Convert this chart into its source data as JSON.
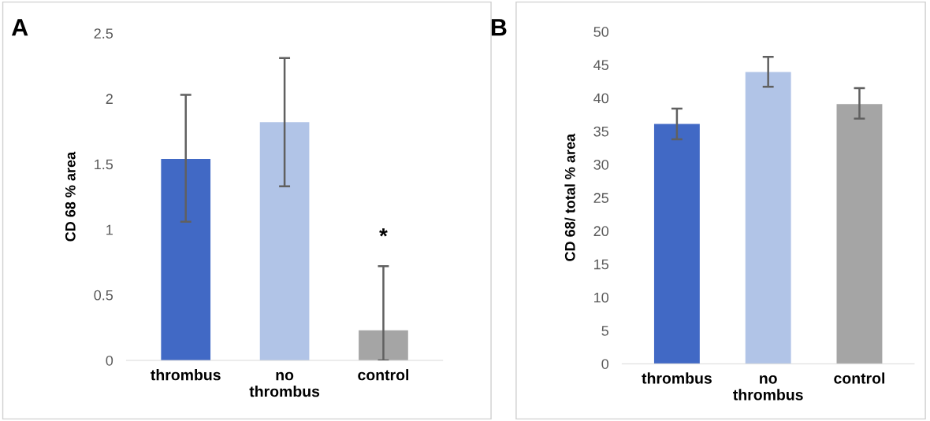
{
  "chart_data": [
    {
      "type": "bar",
      "ylabel": "CD 68 % area",
      "categories": [
        "thrombus",
        "no\nthrombus",
        "control"
      ],
      "values": [
        1.54,
        1.82,
        0.23
      ],
      "colors": [
        "#4169c5",
        "#b1c4e7",
        "#a5a5a5"
      ],
      "errors": [
        [
          1.06,
          2.03
        ],
        [
          1.33,
          2.31
        ],
        [
          0,
          0.72
        ]
      ],
      "ylim": [
        0,
        2.5
      ],
      "yticks": [
        0,
        0.5,
        1,
        1.5,
        2,
        2.5
      ],
      "grid": false,
      "annotations": [
        "A",
        "*"
      ]
    },
    {
      "type": "bar",
      "ylabel": "CD 68/ total % area",
      "categories": [
        "thrombus",
        "no\nthrombus",
        "control"
      ],
      "values": [
        36.1,
        43.9,
        39.1
      ],
      "colors": [
        "#4169c5",
        "#b1c4e7",
        "#a5a5a5"
      ],
      "errors": [
        [
          33.8,
          38.4
        ],
        [
          41.7,
          46.2
        ],
        [
          36.9,
          41.5
        ]
      ],
      "ylim": [
        0,
        50
      ],
      "yticks": [
        0,
        5,
        10,
        15,
        20,
        25,
        30,
        35,
        40,
        45,
        50
      ],
      "grid": false,
      "annotations": [
        "B"
      ]
    }
  ]
}
